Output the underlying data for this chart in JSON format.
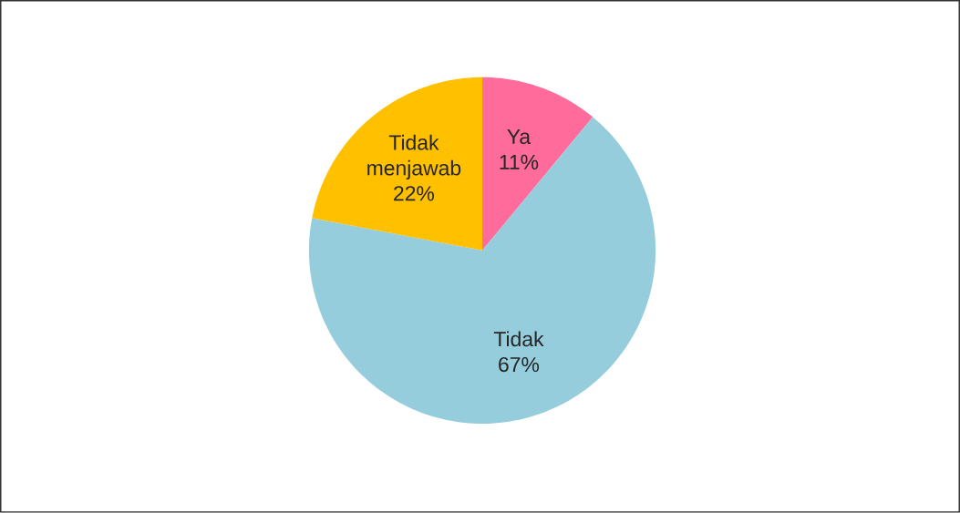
{
  "chart_data": {
    "type": "pie",
    "categories": [
      "Ya",
      "Tidak",
      "Tidak menjawab"
    ],
    "values": [
      11,
      67,
      22
    ],
    "value_labels": [
      "11%",
      "67%",
      "22%"
    ],
    "colors": [
      "#ff6b9b",
      "#96cddd",
      "#ffc000"
    ]
  }
}
